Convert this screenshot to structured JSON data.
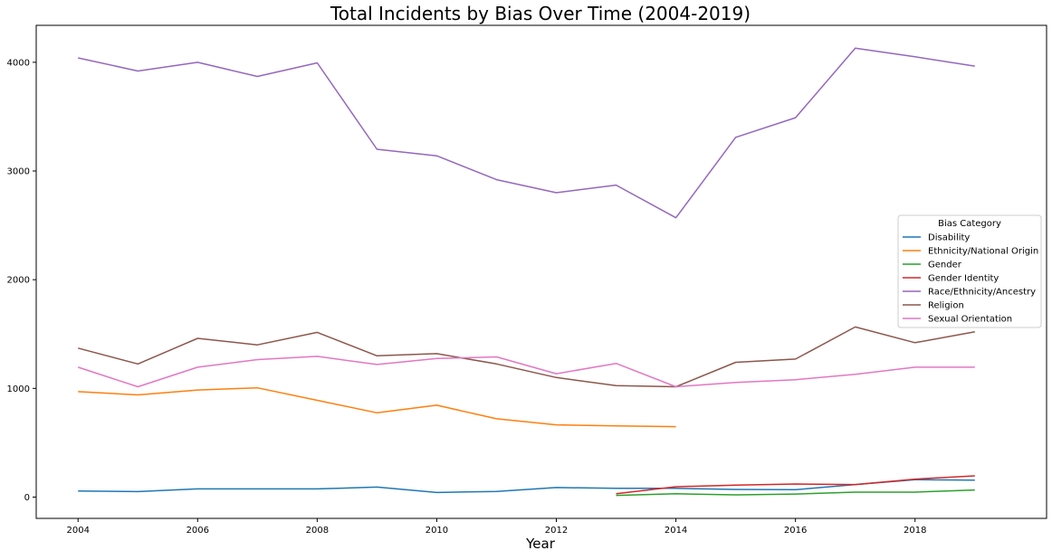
{
  "chart_data": {
    "type": "line",
    "title": "Total Incidents by Bias Over Time (2004-2019)",
    "xlabel": "Year",
    "ylabel": "",
    "xlim": [
      2003.3,
      2020.2
    ],
    "ylim": [
      -196,
      4340
    ],
    "x_ticks": [
      2004,
      2006,
      2008,
      2010,
      2012,
      2014,
      2016,
      2018
    ],
    "y_ticks": [
      0,
      1000,
      2000,
      3000,
      4000
    ],
    "grid": false,
    "legend": {
      "title": "Bias Category",
      "placement": "center-right"
    },
    "series": [
      {
        "name": "Disability",
        "color": "#1f77b4",
        "x": [
          2004,
          2005,
          2006,
          2007,
          2008,
          2009,
          2010,
          2011,
          2012,
          2013,
          2014,
          2015,
          2016,
          2017,
          2018,
          2019
        ],
        "values": [
          55,
          50,
          75,
          75,
          75,
          92,
          42,
          52,
          88,
          80,
          80,
          70,
          68,
          115,
          160,
          155
        ]
      },
      {
        "name": "Ethnicity/National Origin",
        "color": "#ff7f0e",
        "x": [
          2004,
          2005,
          2006,
          2007,
          2008,
          2009,
          2010,
          2011,
          2012,
          2013,
          2014
        ],
        "values": [
          970,
          940,
          985,
          1005,
          890,
          775,
          845,
          720,
          665,
          655,
          648
        ]
      },
      {
        "name": "Gender",
        "color": "#2ca02c",
        "x": [
          2013,
          2014,
          2015,
          2016,
          2017,
          2018,
          2019
        ],
        "values": [
          15,
          30,
          20,
          28,
          45,
          45,
          65
        ]
      },
      {
        "name": "Gender Identity",
        "color": "#d62728",
        "x": [
          2013,
          2014,
          2015,
          2016,
          2017,
          2018,
          2019
        ],
        "values": [
          30,
          95,
          110,
          120,
          115,
          165,
          195
        ]
      },
      {
        "name": "Race/Ethnicity/Ancestry",
        "color": "#9467bd",
        "x": [
          2004,
          2005,
          2006,
          2007,
          2008,
          2009,
          2010,
          2011,
          2012,
          2013,
          2014,
          2015,
          2016,
          2017,
          2018,
          2019
        ],
        "values": [
          4040,
          3920,
          4000,
          3870,
          3995,
          3200,
          3140,
          2920,
          2800,
          2870,
          2570,
          3310,
          3490,
          4130,
          4050,
          3965
        ]
      },
      {
        "name": "Religion",
        "color": "#8c564b",
        "x": [
          2004,
          2005,
          2006,
          2007,
          2008,
          2009,
          2010,
          2011,
          2012,
          2013,
          2014,
          2015,
          2016,
          2017,
          2018,
          2019
        ],
        "values": [
          1370,
          1225,
          1460,
          1400,
          1515,
          1300,
          1320,
          1225,
          1100,
          1025,
          1015,
          1240,
          1270,
          1565,
          1420,
          1520
        ]
      },
      {
        "name": "Sexual Orientation",
        "color": "#e377c2",
        "x": [
          2004,
          2005,
          2006,
          2007,
          2008,
          2009,
          2010,
          2011,
          2012,
          2013,
          2014,
          2015,
          2016,
          2017,
          2018,
          2019
        ],
        "values": [
          1195,
          1015,
          1195,
          1265,
          1295,
          1220,
          1275,
          1290,
          1135,
          1230,
          1015,
          1055,
          1080,
          1130,
          1195,
          1195
        ]
      }
    ]
  }
}
